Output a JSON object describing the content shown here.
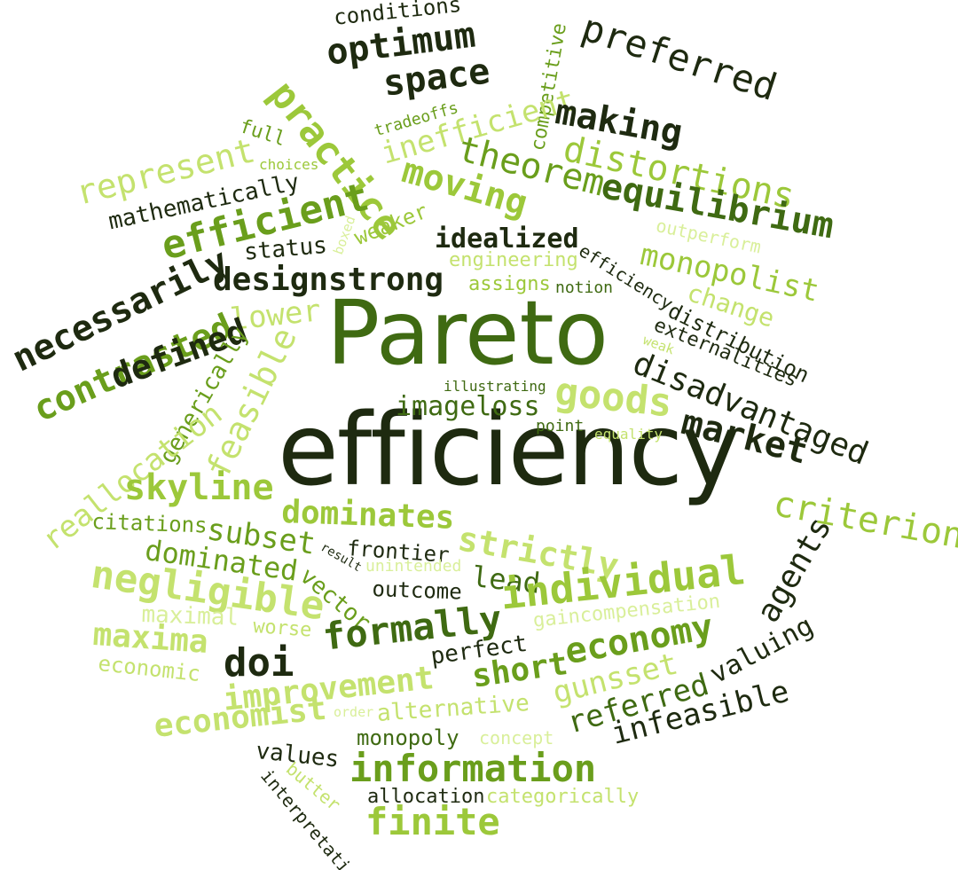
{
  "colors": {
    "darkest": "#1e2a10",
    "dark_green": "#3f6a12",
    "green": "#6a9e1c",
    "mid_green": "#9cc83a",
    "light_green": "#c4e26e",
    "pale_green": "#d9ef9a",
    "background": "#ffffff"
  },
  "words": {
    "pareto": "Pareto",
    "efficiency": "efficiency",
    "conditions": "conditions",
    "optimum": "optimum",
    "space": "space",
    "competitive": "competitive",
    "preferred": "preferred",
    "practice": "practice",
    "full": "full",
    "tradeoffs": "tradeoffs",
    "inefficient": "inefficient",
    "making": "making",
    "represent": "represent",
    "choices": "choices",
    "theorem": "theorem",
    "distortions": "distortions",
    "mathematically": "mathematically",
    "moving": "moving",
    "equilibrium": "equilibrium",
    "efficient": "efficient",
    "boxed": "boxed",
    "weaker": "weaker",
    "outperform": "outperform",
    "status": "status",
    "idealized": "idealized",
    "efficiency_small": "efficiency",
    "monopolist": "monopolist",
    "engineering": "engineering",
    "necessarily": "necessarily",
    "designstrong": "designstrong",
    "assigns": "assigns",
    "notion": "notion",
    "change": "change",
    "contrasted": "contrasted",
    "lower": "lower",
    "distribution": "distribution",
    "weak": "weak",
    "externalities": "externalities",
    "defined": "defined",
    "generically": "generically",
    "feasible": "feasible",
    "illustrating": "illustrating",
    "goods": "goods",
    "disadvantaged": "disadvantaged",
    "imageloss": "imageloss",
    "point": "point",
    "equality": "equality",
    "market": "market",
    "reallocation": "reallocation",
    "skyline": "skyline",
    "criterion": "criterion",
    "citations": "citations",
    "subset": "subset",
    "dominates": "dominates",
    "strictly": "strictly",
    "dominated": "dominated",
    "frontier": "frontier",
    "result": "result",
    "vector": "vector",
    "unintended": "unintended",
    "lead": "lead",
    "agents": "agents",
    "negligible": "negligible",
    "outcome": "outcome",
    "individual": "individual",
    "maximal": "maximal",
    "worse": "worse",
    "formally": "formally",
    "gaincompensation": "gaincompensation",
    "maxima": "maxima",
    "economy": "economy",
    "valuing": "valuing",
    "doi": "doi",
    "perfect": "perfect",
    "economic": "economic",
    "improvement": "improvement",
    "short": "short",
    "gunsset": "gunsset",
    "order": "order",
    "alternative": "alternative",
    "referred": "referred",
    "economist": "economist",
    "infeasible": "infeasible",
    "monopoly": "monopoly",
    "concept": "concept",
    "values": "values",
    "information": "information",
    "butter": "butter",
    "allocation": "allocation",
    "categorically": "categorically",
    "interpretation": "interpretation",
    "finite": "finite"
  }
}
